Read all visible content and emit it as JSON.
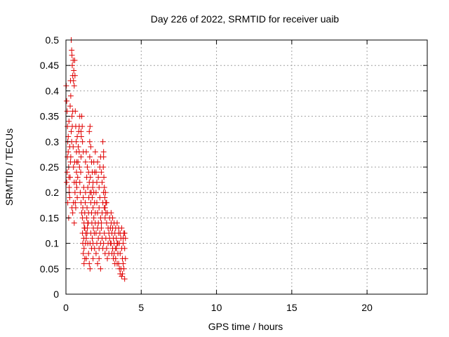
{
  "chart_data": {
    "type": "scatter",
    "title": "Day 226 of 2022, SRMTID for receiver uaib",
    "xlabel": "GPS time / hours",
    "ylabel": "SRMTID / TECUs",
    "xlim": [
      0,
      24
    ],
    "ylim": [
      0,
      0.5
    ],
    "x_ticks": [
      "0",
      "5",
      "10",
      "15",
      "20"
    ],
    "x_tick_values": [
      0,
      5,
      10,
      15,
      20
    ],
    "y_ticks": [
      "0",
      "0.05",
      "0.1",
      "0.15",
      "0.2",
      "0.25",
      "0.3",
      "0.35",
      "0.4",
      "0.45",
      "0.5"
    ],
    "y_tick_values": [
      0,
      0.05,
      0.1,
      0.15,
      0.2,
      0.25,
      0.3,
      0.35,
      0.4,
      0.45,
      0.5
    ],
    "grid": true,
    "marker": "+",
    "marker_color": "#e00000",
    "series": [
      {
        "points": [
          [
            0.02,
            0.41
          ],
          [
            0.05,
            0.38
          ],
          [
            0.08,
            0.36
          ],
          [
            0.1,
            0.33
          ],
          [
            0.12,
            0.3
          ],
          [
            0.15,
            0.28
          ],
          [
            0.18,
            0.25
          ],
          [
            0.2,
            0.23
          ],
          [
            0.22,
            0.21
          ],
          [
            0.25,
            0.19
          ],
          [
            0.05,
            0.22
          ],
          [
            0.08,
            0.24
          ],
          [
            0.1,
            0.27
          ],
          [
            0.15,
            0.31
          ],
          [
            0.2,
            0.34
          ],
          [
            0.25,
            0.29
          ],
          [
            0.3,
            0.26
          ],
          [
            0.35,
            0.32
          ],
          [
            0.4,
            0.35
          ],
          [
            0.12,
            0.18
          ],
          [
            0.18,
            0.15
          ],
          [
            0.22,
            0.2
          ],
          [
            0.28,
            0.23
          ],
          [
            0.32,
            0.27
          ],
          [
            0.38,
            0.3
          ],
          [
            0.42,
            0.33
          ],
          [
            0.45,
            0.36
          ],
          [
            0.48,
            0.29
          ],
          [
            0.5,
            0.25
          ],
          [
            0.55,
            0.22
          ],
          [
            0.35,
            0.5
          ],
          [
            0.38,
            0.48
          ],
          [
            0.4,
            0.47
          ],
          [
            0.42,
            0.45
          ],
          [
            0.45,
            0.43
          ],
          [
            0.48,
            0.46
          ],
          [
            0.5,
            0.42
          ],
          [
            0.52,
            0.44
          ],
          [
            0.55,
            0.41
          ],
          [
            0.58,
            0.46
          ],
          [
            0.6,
            0.43
          ],
          [
            0.3,
            0.42
          ],
          [
            0.32,
            0.39
          ],
          [
            0.28,
            0.37
          ],
          [
            0.62,
            0.36
          ],
          [
            0.65,
            0.33
          ],
          [
            0.68,
            0.3
          ],
          [
            0.7,
            0.28
          ],
          [
            0.72,
            0.26
          ],
          [
            0.75,
            0.31
          ],
          [
            0.6,
            0.2
          ],
          [
            0.62,
            0.18
          ],
          [
            0.65,
            0.17
          ],
          [
            0.68,
            0.22
          ],
          [
            0.7,
            0.24
          ],
          [
            0.72,
            0.21
          ],
          [
            0.75,
            0.19
          ],
          [
            0.78,
            0.23
          ],
          [
            0.8,
            0.26
          ],
          [
            0.82,
            0.29
          ],
          [
            0.85,
            0.32
          ],
          [
            0.88,
            0.28
          ],
          [
            0.9,
            0.25
          ],
          [
            0.92,
            0.22
          ],
          [
            0.95,
            0.2
          ],
          [
            0.98,
            0.24
          ],
          [
            1.0,
            0.27
          ],
          [
            1.02,
            0.31
          ],
          [
            1.05,
            0.35
          ],
          [
            1.08,
            0.33
          ],
          [
            0.45,
            0.16
          ],
          [
            0.5,
            0.18
          ],
          [
            0.55,
            0.14
          ],
          [
            0.4,
            0.17
          ],
          [
            0.58,
            0.26
          ],
          [
            0.88,
            0.33
          ],
          [
            0.92,
            0.35
          ],
          [
            1.0,
            0.32
          ],
          [
            1.1,
            0.3
          ],
          [
            1.15,
            0.28
          ],
          [
            1.0,
            0.18
          ],
          [
            1.05,
            0.16
          ],
          [
            1.1,
            0.15
          ],
          [
            1.12,
            0.17
          ],
          [
            1.15,
            0.19
          ],
          [
            1.18,
            0.21
          ],
          [
            1.2,
            0.14
          ],
          [
            1.22,
            0.13
          ],
          [
            1.25,
            0.16
          ],
          [
            1.28,
            0.18
          ],
          [
            1.3,
            0.2
          ],
          [
            1.32,
            0.12
          ],
          [
            1.35,
            0.11
          ],
          [
            1.38,
            0.15
          ],
          [
            1.4,
            0.17
          ],
          [
            1.42,
            0.13
          ],
          [
            1.45,
            0.1
          ],
          [
            1.48,
            0.14
          ],
          [
            1.5,
            0.16
          ],
          [
            1.52,
            0.19
          ],
          [
            1.1,
            0.12
          ],
          [
            1.12,
            0.1
          ],
          [
            1.15,
            0.08
          ],
          [
            1.18,
            0.11
          ],
          [
            1.2,
            0.09
          ],
          [
            1.25,
            0.13
          ],
          [
            1.3,
            0.1
          ],
          [
            1.35,
            0.07
          ],
          [
            1.4,
            0.12
          ],
          [
            1.45,
            0.14
          ],
          [
            1.3,
            0.26
          ],
          [
            1.35,
            0.28
          ],
          [
            1.38,
            0.23
          ],
          [
            1.42,
            0.25
          ],
          [
            1.45,
            0.21
          ],
          [
            1.5,
            0.24
          ],
          [
            1.55,
            0.22
          ],
          [
            1.58,
            0.27
          ],
          [
            1.6,
            0.2
          ],
          [
            1.62,
            0.23
          ],
          [
            1.65,
            0.18
          ],
          [
            1.68,
            0.2
          ],
          [
            1.7,
            0.16
          ],
          [
            1.72,
            0.14
          ],
          [
            1.75,
            0.19
          ],
          [
            1.78,
            0.21
          ],
          [
            1.8,
            0.17
          ],
          [
            1.82,
            0.13
          ],
          [
            1.85,
            0.15
          ],
          [
            1.88,
            0.12
          ],
          [
            1.55,
            0.32
          ],
          [
            1.6,
            0.33
          ],
          [
            1.58,
            0.3
          ],
          [
            1.65,
            0.29
          ],
          [
            1.7,
            0.26
          ],
          [
            1.75,
            0.24
          ],
          [
            1.8,
            0.22
          ],
          [
            1.85,
            0.2
          ],
          [
            1.9,
            0.18
          ],
          [
            1.95,
            0.16
          ],
          [
            1.5,
            0.08
          ],
          [
            1.55,
            0.06
          ],
          [
            1.6,
            0.05
          ],
          [
            1.2,
            0.06
          ],
          [
            1.25,
            0.07
          ],
          [
            1.6,
            0.1
          ],
          [
            1.65,
            0.12
          ],
          [
            1.7,
            0.09
          ],
          [
            1.75,
            0.11
          ],
          [
            1.8,
            0.1
          ],
          [
            2.0,
            0.2
          ],
          [
            2.05,
            0.18
          ],
          [
            2.1,
            0.16
          ],
          [
            2.15,
            0.14
          ],
          [
            2.2,
            0.17
          ],
          [
            2.25,
            0.19
          ],
          [
            2.3,
            0.15
          ],
          [
            2.35,
            0.13
          ],
          [
            2.4,
            0.16
          ],
          [
            2.45,
            0.18
          ],
          [
            2.0,
            0.12
          ],
          [
            2.05,
            0.1
          ],
          [
            2.1,
            0.13
          ],
          [
            2.15,
            0.11
          ],
          [
            2.2,
            0.09
          ],
          [
            2.25,
            0.12
          ],
          [
            2.3,
            0.1
          ],
          [
            2.35,
            0.14
          ],
          [
            2.4,
            0.11
          ],
          [
            2.45,
            0.09
          ],
          [
            2.0,
            0.24
          ],
          [
            2.05,
            0.22
          ],
          [
            2.1,
            0.26
          ],
          [
            2.15,
            0.23
          ],
          [
            2.2,
            0.21
          ],
          [
            2.25,
            0.25
          ],
          [
            2.3,
            0.27
          ],
          [
            2.35,
            0.24
          ],
          [
            2.4,
            0.22
          ],
          [
            2.5,
            0.28
          ],
          [
            2.5,
            0.2
          ],
          [
            2.55,
            0.17
          ],
          [
            2.6,
            0.15
          ],
          [
            2.65,
            0.18
          ],
          [
            2.7,
            0.14
          ],
          [
            2.75,
            0.16
          ],
          [
            2.8,
            0.13
          ],
          [
            2.85,
            0.12
          ],
          [
            2.9,
            0.15
          ],
          [
            2.95,
            0.13
          ],
          [
            2.5,
            0.1
          ],
          [
            2.55,
            0.12
          ],
          [
            2.6,
            0.08
          ],
          [
            2.65,
            0.11
          ],
          [
            2.7,
            0.09
          ],
          [
            2.75,
            0.07
          ],
          [
            2.8,
            0.1
          ],
          [
            2.85,
            0.08
          ],
          [
            2.9,
            0.11
          ],
          [
            2.95,
            0.1
          ],
          [
            2.45,
            0.3
          ],
          [
            2.5,
            0.27
          ],
          [
            2.48,
            0.25
          ],
          [
            2.52,
            0.23
          ],
          [
            2.55,
            0.21
          ],
          [
            2.58,
            0.19
          ],
          [
            2.6,
            0.17
          ],
          [
            2.62,
            0.2
          ],
          [
            2.65,
            0.16
          ],
          [
            2.7,
            0.18
          ],
          [
            3.0,
            0.14
          ],
          [
            3.05,
            0.12
          ],
          [
            3.1,
            0.13
          ],
          [
            3.15,
            0.11
          ],
          [
            3.2,
            0.1
          ],
          [
            3.25,
            0.12
          ],
          [
            3.3,
            0.09
          ],
          [
            3.35,
            0.11
          ],
          [
            3.4,
            0.1
          ],
          [
            3.45,
            0.08
          ],
          [
            3.0,
            0.1
          ],
          [
            3.05,
            0.08
          ],
          [
            3.1,
            0.09
          ],
          [
            3.15,
            0.07
          ],
          [
            3.2,
            0.08
          ],
          [
            3.25,
            0.06
          ],
          [
            3.3,
            0.07
          ],
          [
            3.35,
            0.09
          ],
          [
            3.4,
            0.06
          ],
          [
            3.45,
            0.1
          ],
          [
            3.5,
            0.12
          ],
          [
            3.55,
            0.1
          ],
          [
            3.6,
            0.08
          ],
          [
            3.65,
            0.11
          ],
          [
            3.7,
            0.09
          ],
          [
            3.75,
            0.07
          ],
          [
            3.8,
            0.1
          ],
          [
            3.85,
            0.12
          ],
          [
            3.9,
            0.09
          ],
          [
            3.95,
            0.11
          ],
          [
            3.5,
            0.06
          ],
          [
            3.55,
            0.05
          ],
          [
            3.6,
            0.04
          ],
          [
            3.65,
            0.05
          ],
          [
            3.7,
            0.035
          ],
          [
            3.75,
            0.04
          ],
          [
            3.8,
            0.06
          ],
          [
            3.85,
            0.05
          ],
          [
            3.9,
            0.03
          ],
          [
            3.95,
            0.07
          ],
          [
            3.0,
            0.16
          ],
          [
            3.1,
            0.15
          ],
          [
            3.2,
            0.14
          ],
          [
            3.3,
            0.13
          ],
          [
            3.4,
            0.14
          ],
          [
            3.5,
            0.13
          ],
          [
            3.6,
            0.12
          ],
          [
            3.7,
            0.13
          ],
          [
            3.8,
            0.11
          ],
          [
            3.9,
            0.12
          ],
          [
            1.8,
            0.07
          ],
          [
            1.9,
            0.09
          ],
          [
            2.0,
            0.08
          ],
          [
            2.1,
            0.06
          ],
          [
            2.2,
            0.07
          ],
          [
            2.3,
            0.05
          ],
          [
            1.95,
            0.14
          ],
          [
            1.85,
            0.26
          ],
          [
            1.9,
            0.24
          ],
          [
            1.95,
            0.28
          ]
        ]
      }
    ]
  }
}
